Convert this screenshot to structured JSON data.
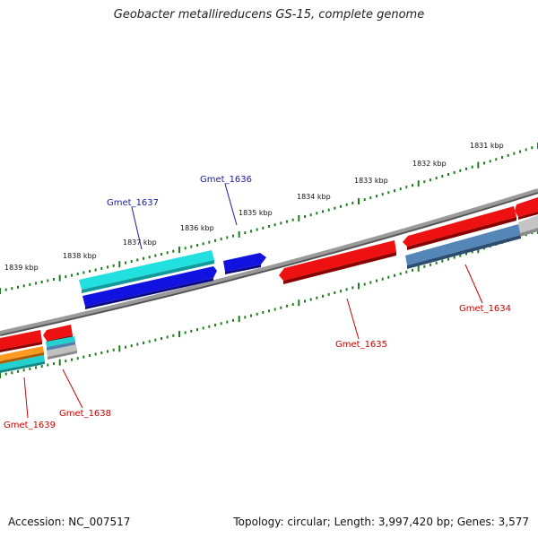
{
  "title": "Geobacter metallireducens GS-15, complete genome",
  "footer": {
    "accession": "Accession: NC_007517",
    "summary": "Topology: circular; Length: 3,997,420 bp; Genes: 3,577"
  },
  "colors": {
    "backbone": "#7a7a7a",
    "tick": "#1e7d1e",
    "forward_label": "#1a1aa0",
    "reverse_label": "#cc0000",
    "red_gene": "#ee1111",
    "blue_gene": "#1111dd",
    "cyan_gene": "#22dddd",
    "steel_gene": "#4f7fb0",
    "orange_gene": "#ff9922",
    "gray_gene": "#b8b8b8"
  },
  "kbp_labels": [
    "1839 kbp",
    "1838 kbp",
    "1837 kbp",
    "1836 kbp",
    "1835 kbp",
    "1834 kbp",
    "1833 kbp",
    "1832 kbp",
    "1831 kbp"
  ],
  "gene_labels": {
    "forward": [
      "Gmet_1637",
      "Gmet_1636"
    ],
    "reverse": [
      "Gmet_1639",
      "Gmet_1638",
      "Gmet_1635",
      "Gmet_1634"
    ]
  }
}
